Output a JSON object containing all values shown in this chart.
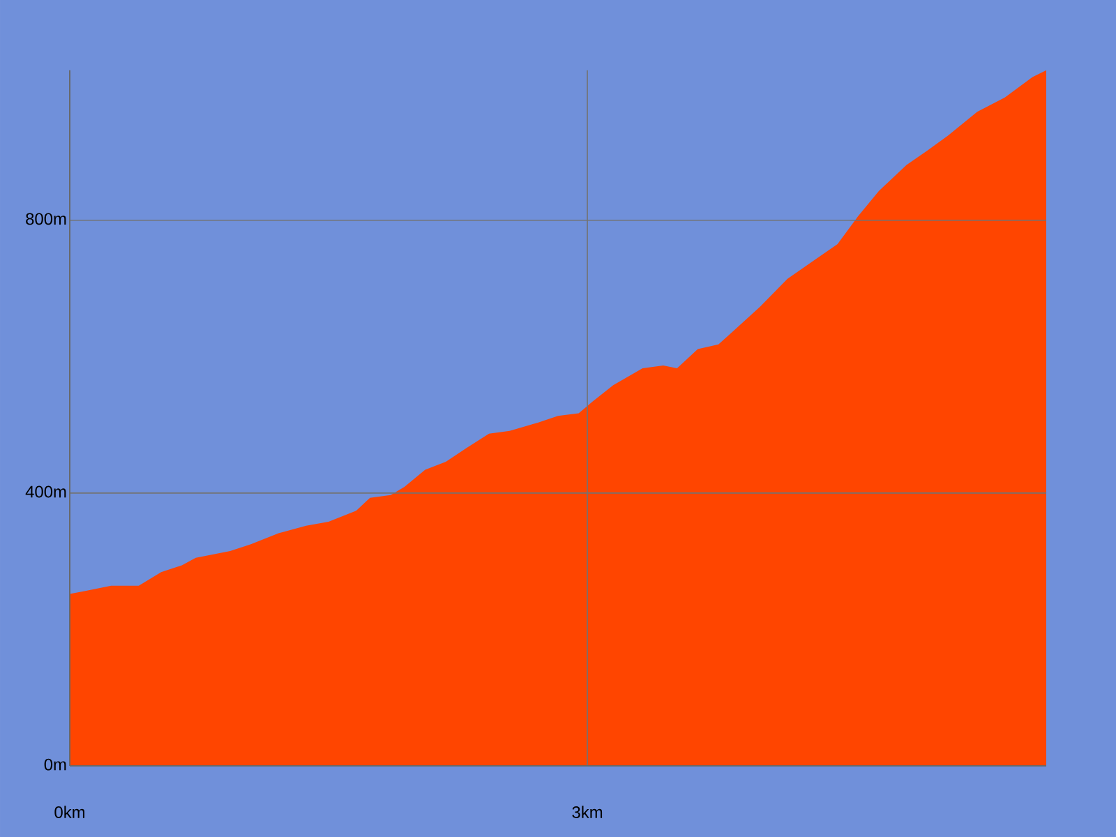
{
  "chart_data": {
    "type": "area",
    "color": "#ff4500",
    "x": [
      0,
      0.08,
      0.24,
      0.4,
      0.53,
      0.65,
      0.73,
      0.93,
      1.05,
      1.21,
      1.37,
      1.5,
      1.66,
      1.74,
      1.86,
      1.94,
      2.06,
      2.18,
      2.3,
      2.43,
      2.55,
      2.71,
      2.83,
      2.95,
      3.03,
      3.15,
      3.32,
      3.44,
      3.52,
      3.64,
      3.76,
      3.84,
      4.0,
      4.16,
      4.33,
      4.45,
      4.57,
      4.69,
      4.85,
      4.97,
      5.09,
      5.26,
      5.42,
      5.58,
      5.66
    ],
    "values": [
      252,
      256,
      264,
      264,
      284,
      294,
      305,
      315,
      325,
      341,
      352,
      358,
      374,
      393,
      397,
      409,
      434,
      446,
      466,
      487,
      491,
      503,
      513,
      517,
      534,
      558,
      583,
      587,
      583,
      611,
      618,
      636,
      673,
      714,
      744,
      765,
      806,
      843,
      881,
      902,
      924,
      959,
      980,
      1010,
      1020
    ],
    "xlim": [
      0,
      5.66
    ],
    "ylim": [
      0,
      1020
    ],
    "xticks": [
      {
        "value": 0,
        "label": "0km"
      },
      {
        "value": 3,
        "label": "3km"
      }
    ],
    "yticks": [
      {
        "value": 0,
        "label": "0m"
      },
      {
        "value": 400,
        "label": "400m"
      },
      {
        "value": 800,
        "label": "800m"
      }
    ],
    "grid": true
  }
}
